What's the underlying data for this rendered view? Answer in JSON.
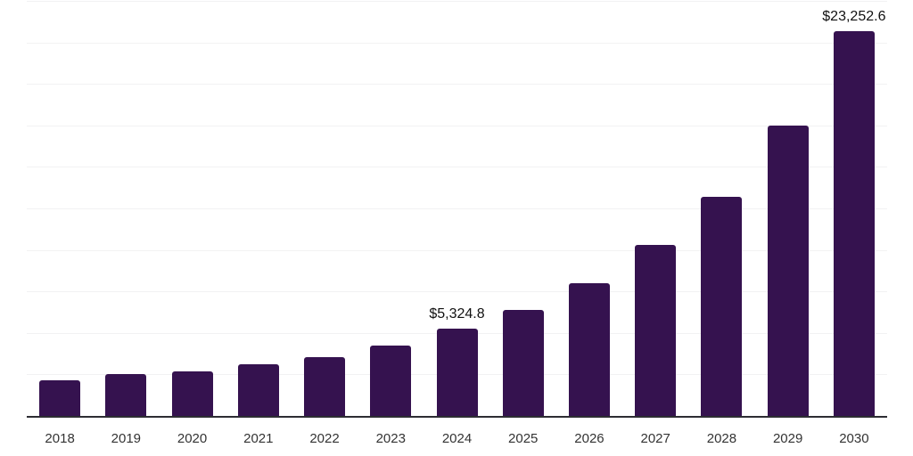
{
  "chart_data": {
    "type": "bar",
    "title": "",
    "xlabel": "",
    "ylabel": "",
    "categories": [
      "2018",
      "2019",
      "2020",
      "2021",
      "2022",
      "2023",
      "2024",
      "2025",
      "2026",
      "2027",
      "2028",
      "2029",
      "2030"
    ],
    "values": [
      2180,
      2560,
      2750,
      3150,
      3610,
      4310,
      5324.8,
      6450,
      8030,
      10340,
      13270,
      17530,
      23252.6
    ],
    "value_labels": {
      "2024": "$5,324.8",
      "2030": "$23,252.6"
    },
    "ylim": [
      0,
      25000
    ],
    "gridline_interval": 2500,
    "grid": "horizontal",
    "legend_position": "none",
    "colors": {
      "bar": "#35124F",
      "axis_line": "#2d2d33",
      "gridline": "#f2f2f3",
      "tick_label": "#333333",
      "value_label": "#111111"
    }
  }
}
